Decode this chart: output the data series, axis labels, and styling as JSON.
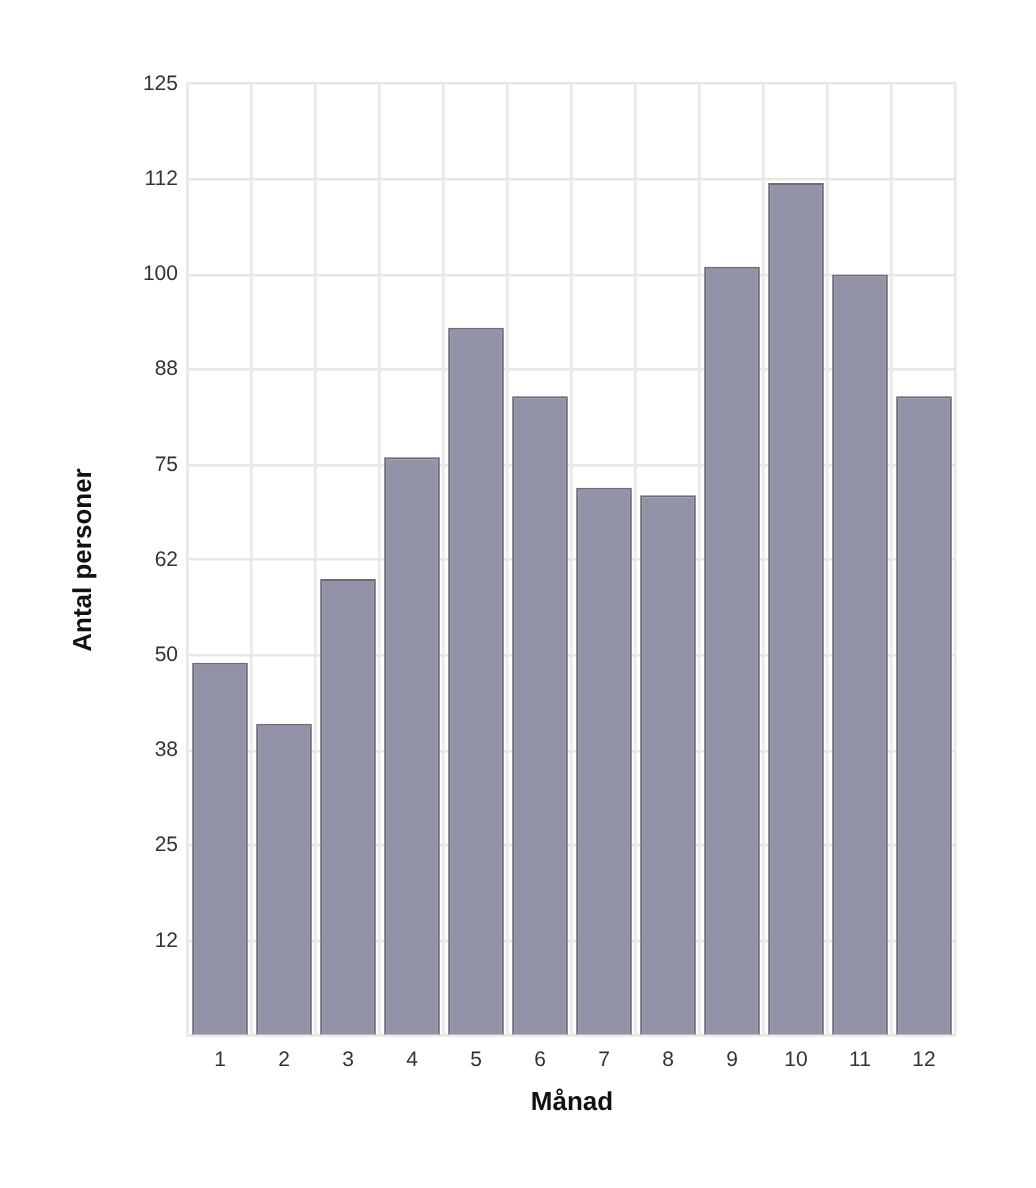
{
  "chart_data": {
    "type": "bar",
    "xlabel": "Månad",
    "ylabel": "Antal personer",
    "categories": [
      "1",
      "2",
      "3",
      "4",
      "5",
      "6",
      "7",
      "8",
      "9",
      "10",
      "11",
      "12"
    ],
    "values": [
      49,
      41,
      60,
      76,
      93,
      84,
      72,
      71,
      101,
      112,
      100,
      84
    ],
    "color": "#9393a8",
    "ylim": [
      0,
      125
    ],
    "yticks": [
      {
        "value": 0,
        "label": null
      },
      {
        "value": 12.5,
        "label": "12"
      },
      25,
      {
        "value": 37.5,
        "label": "38"
      },
      50,
      {
        "value": 62.5,
        "label": "62"
      },
      75,
      {
        "value": 87.5,
        "label": "88"
      },
      100,
      {
        "value": 112.5,
        "label": "112"
      },
      125
    ],
    "grid": true
  }
}
